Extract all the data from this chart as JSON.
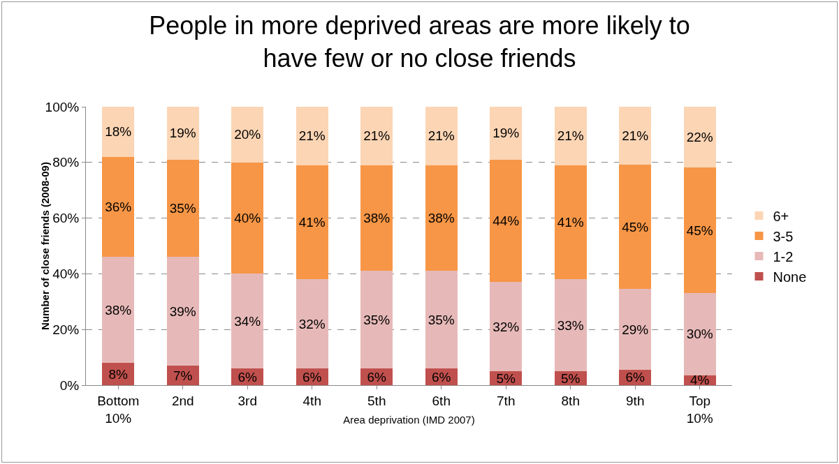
{
  "chart_data": {
    "type": "bar",
    "stacked": true,
    "title": "People in more deprived areas are more likely to have few or no close friends",
    "xlabel": "Area deprivation (IMD 2007)",
    "ylabel": "Number of close friends (2008-09)",
    "categories": [
      "Bottom 10%",
      "2nd",
      "3rd",
      "4th",
      "5th",
      "6th",
      "7th",
      "8th",
      "9th",
      "Top 10%"
    ],
    "series": [
      {
        "name": "None",
        "color": "#c0504d",
        "values": [
          8,
          7,
          6,
          6,
          6,
          6,
          5,
          5,
          5.6,
          3.6
        ],
        "value_labels": [
          "8%",
          "7%",
          "6%",
          "6%",
          "6%",
          "6%",
          "5%",
          "5%",
          "6%",
          "4%"
        ]
      },
      {
        "name": "1-2",
        "color": "#e6b9b8",
        "values": [
          38,
          39,
          34,
          32,
          35,
          35,
          32,
          33,
          28.9,
          29.5
        ],
        "value_labels": [
          "38%",
          "39%",
          "34%",
          "32%",
          "35%",
          "35%",
          "32%",
          "33%",
          "29%",
          "30%"
        ]
      },
      {
        "name": "3-5",
        "color": "#f79646",
        "values": [
          36,
          35,
          40,
          41,
          38,
          38,
          44,
          41,
          44.6,
          45
        ],
        "value_labels": [
          "36%",
          "35%",
          "40%",
          "41%",
          "38%",
          "38%",
          "44%",
          "41%",
          "45%",
          "45%"
        ]
      },
      {
        "name": "6+",
        "color": "#fcd5b4",
        "values": [
          18,
          19,
          20,
          21,
          21,
          21,
          19,
          21,
          20.9,
          21.9
        ],
        "value_labels": [
          "18%",
          "19%",
          "20%",
          "21%",
          "21%",
          "21%",
          "19%",
          "21%",
          "21%",
          "22%"
        ]
      }
    ],
    "ylim": [
      0,
      100
    ],
    "yticks": [
      {
        "value": 0,
        "label": "0%"
      },
      {
        "value": 20,
        "label": "20%"
      },
      {
        "value": 40,
        "label": "40%"
      },
      {
        "value": 60,
        "label": "60%"
      },
      {
        "value": 80,
        "label": "80%"
      },
      {
        "value": 100,
        "label": "100%"
      }
    ],
    "grid": "y",
    "legend": "right"
  }
}
